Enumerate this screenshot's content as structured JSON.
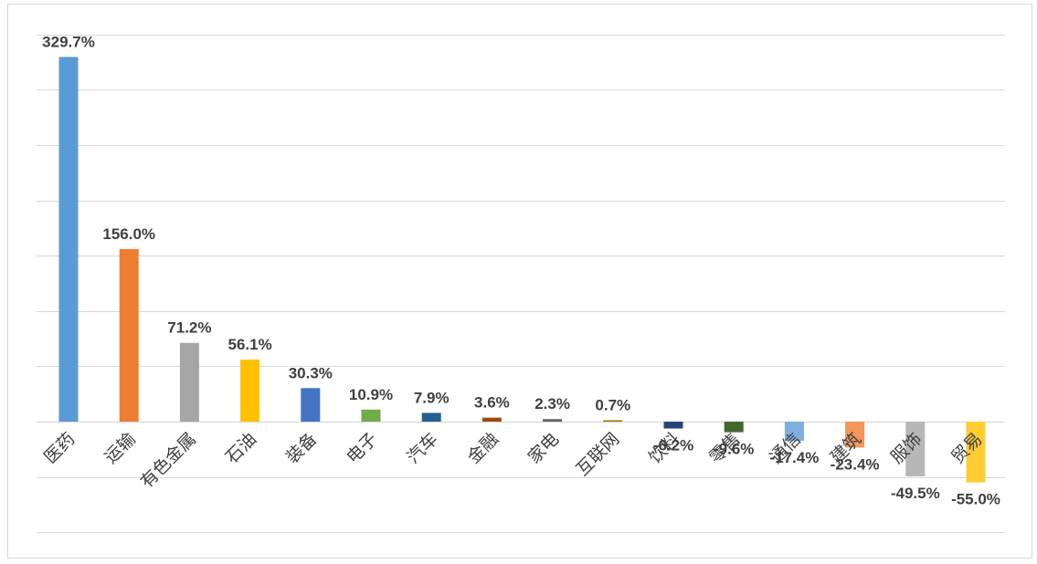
{
  "chart_data": {
    "type": "bar",
    "title": "",
    "xlabel": "",
    "ylabel": "",
    "ylim": [
      -100,
      350
    ],
    "grid_step": 50,
    "grid": true,
    "legend": "none",
    "categories": [
      "医药",
      "运输",
      "有色金属",
      "石油",
      "装备",
      "电子",
      "汽车",
      "金融",
      "家电",
      "互联网",
      "饮料",
      "零售",
      "通信",
      "建筑",
      "服饰",
      "贸易"
    ],
    "values": [
      329.7,
      156.0,
      71.2,
      56.1,
      30.3,
      10.9,
      7.9,
      3.6,
      2.3,
      0.7,
      -6.2,
      -9.6,
      -17.4,
      -23.4,
      -49.5,
      -55.0
    ],
    "data_labels": [
      "329.7%",
      "156.0%",
      "71.2%",
      "56.1%",
      "30.3%",
      "10.9%",
      "7.9%",
      "3.6%",
      "2.3%",
      "0.7%",
      "-6.2%",
      "-9.6%",
      "-17.4%",
      "-23.4%",
      "-49.5%",
      "-55.0%"
    ],
    "colors": [
      "#5B9BD5",
      "#ED7D31",
      "#A5A5A5",
      "#FFC000",
      "#4472C4",
      "#70AD47",
      "#255E91",
      "#9E480E",
      "#636363",
      "#997300",
      "#264478",
      "#43682B",
      "#7CAFDD",
      "#F1975A",
      "#B7B7B7",
      "#FFCD33"
    ]
  }
}
